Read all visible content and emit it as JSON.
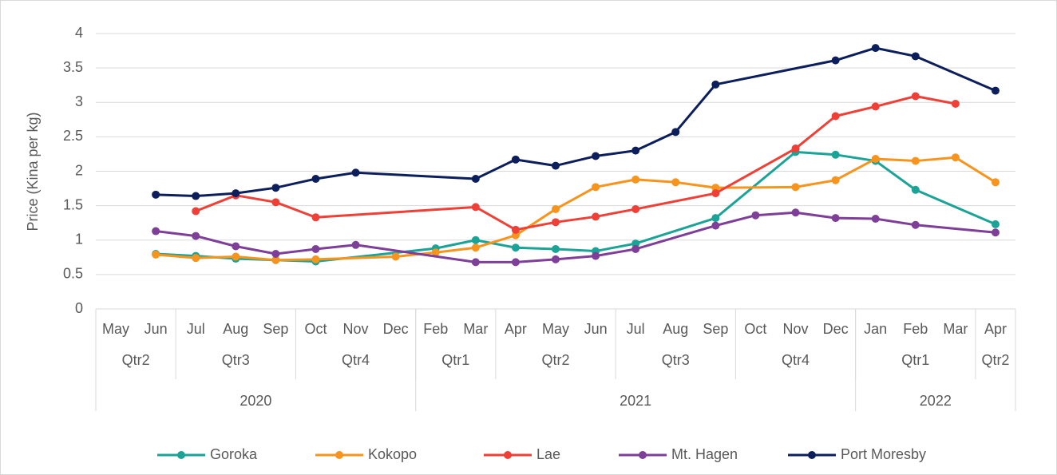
{
  "chart_data": {
    "type": "line",
    "y_axis_label": "Price (Kina per kg)",
    "categories": [
      "May",
      "Jun",
      "Jul",
      "Aug",
      "Sep",
      "Oct",
      "Nov",
      "Dec",
      "Feb",
      "Mar",
      "Apr",
      "May",
      "Jun",
      "Jul",
      "Aug",
      "Sep",
      "Oct",
      "Nov",
      "Dec",
      "Jan",
      "Feb",
      "Mar",
      "Apr"
    ],
    "quarters": [
      "Qtr2",
      null,
      "Qtr3",
      null,
      null,
      "Qtr4",
      null,
      null,
      "Qtr1",
      null,
      "Qtr2",
      null,
      null,
      "Qtr3",
      null,
      null,
      "Qtr4",
      null,
      null,
      "Qtr1",
      null,
      null,
      "Qtr2"
    ],
    "years": [
      "2020",
      null,
      null,
      null,
      null,
      null,
      null,
      null,
      "2021",
      null,
      null,
      null,
      null,
      null,
      null,
      null,
      null,
      null,
      null,
      "2022",
      null,
      null,
      null
    ],
    "ylim": [
      0,
      4
    ],
    "yticks": [
      0,
      0.5,
      1,
      1.5,
      2,
      2.5,
      3,
      3.5,
      4
    ],
    "grid": true,
    "connect_gaps": true,
    "legend": "bottom",
    "series": [
      {
        "name": "Goroka",
        "color": "#1aa396",
        "values": [
          null,
          0.8,
          0.77,
          0.73,
          0.71,
          0.69,
          null,
          null,
          0.88,
          1.0,
          0.89,
          0.87,
          0.84,
          0.95,
          null,
          1.32,
          null,
          2.28,
          2.24,
          2.15,
          1.73,
          null,
          1.23
        ]
      },
      {
        "name": "Kokopo",
        "color": "#f7941d",
        "values": [
          null,
          0.79,
          0.74,
          0.76,
          0.71,
          0.72,
          null,
          0.76,
          0.82,
          0.89,
          1.07,
          1.45,
          1.77,
          1.88,
          1.84,
          1.76,
          null,
          1.77,
          1.87,
          2.18,
          2.15,
          2.2,
          1.84
        ]
      },
      {
        "name": "Lae",
        "color": "#ee4036",
        "values": [
          null,
          null,
          1.42,
          1.65,
          1.55,
          1.33,
          null,
          null,
          null,
          1.48,
          1.15,
          1.26,
          1.34,
          1.45,
          null,
          1.68,
          null,
          2.33,
          2.8,
          2.94,
          3.09,
          2.98,
          null
        ]
      },
      {
        "name": "Mt. Hagen",
        "color": "#7e3f98",
        "values": [
          null,
          1.13,
          1.06,
          0.91,
          0.8,
          0.87,
          0.93,
          null,
          null,
          0.68,
          0.68,
          0.72,
          0.77,
          0.87,
          null,
          1.21,
          1.36,
          1.4,
          1.32,
          1.31,
          1.22,
          null,
          1.11
        ]
      },
      {
        "name": "Port Moresby",
        "color": "#0c1f5c",
        "values": [
          null,
          1.66,
          1.64,
          1.68,
          1.76,
          1.89,
          1.98,
          null,
          null,
          1.89,
          2.17,
          2.08,
          2.22,
          2.3,
          2.57,
          3.26,
          null,
          null,
          3.61,
          3.79,
          3.67,
          null,
          3.17
        ]
      }
    ]
  }
}
